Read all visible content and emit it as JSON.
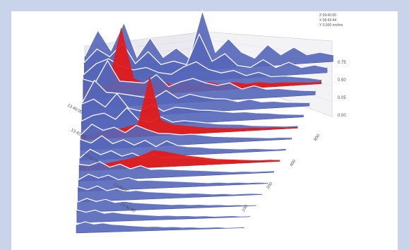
{
  "chart_data": {
    "type": "area",
    "title": "",
    "legend": {
      "position": "top-right",
      "entries": [
        "Z  09:42:00",
        "X  09:42:44",
        "Y  0.000 nm/ms"
      ]
    },
    "z_axis": {
      "label": "",
      "ticks": [
        "0.00",
        "0.05",
        "0.50",
        "0.75"
      ],
      "range": [
        0,
        0.75
      ]
    },
    "time_axis": {
      "ticks": [
        "13:40:00",
        "13:42:00",
        "13:43:00",
        "13:45:00",
        "13:46:00"
      ],
      "highlight": "13:46:00"
    },
    "depth_axis": {
      "ticks": [
        "800",
        "400",
        "200",
        "100"
      ]
    },
    "series": [
      {
        "values": [
          0.25,
          0.55,
          0.3,
          0.62,
          0.2,
          0.42,
          0.18,
          0.28,
          0.15,
          0.7,
          0.2,
          0.35,
          0.18,
          0.1,
          0.25,
          0.12,
          0.2,
          0.1,
          0.12,
          0.08
        ]
      },
      {
        "values": [
          0.3,
          0.45,
          0.35,
          0.5,
          0.25,
          0.38,
          0.22,
          0.25,
          0.2,
          0.55,
          0.22,
          0.3,
          0.15,
          0.12,
          0.2,
          0.1,
          0.15,
          0.08,
          0.1,
          0.06
        ]
      },
      {
        "values": [
          0.28,
          0.4,
          0.45,
          0.35,
          0.3,
          0.32,
          0.25,
          0.22,
          0.3,
          0.35,
          0.25,
          0.2,
          0.22,
          0.15,
          0.18,
          0.12,
          0.12,
          0.1,
          0.08,
          0.05
        ]
      },
      {
        "values": [
          0.35,
          0.3,
          0.55,
          0.3,
          0.28,
          0.26,
          0.35,
          0.2,
          0.25,
          0.28,
          0.22,
          0.18,
          0.2,
          0.12,
          0.15,
          0.1,
          0.1,
          0.08,
          0.06,
          0.05
        ]
      },
      {
        "values": [
          0.2,
          0.45,
          0.3,
          0.28,
          0.25,
          0.22,
          0.2,
          0.28,
          0.18,
          0.22,
          0.18,
          0.15,
          0.14,
          0.1,
          0.12,
          0.08,
          0.08,
          0.06,
          0.05,
          0.04
        ]
      },
      {
        "values": [
          0.3,
          0.35,
          0.25,
          0.4,
          0.22,
          0.18,
          0.25,
          0.16,
          0.2,
          0.18,
          0.15,
          0.14,
          0.12,
          0.1,
          0.1,
          0.08,
          0.07,
          0.05,
          0.04,
          0.03
        ]
      },
      {
        "values": [
          0.22,
          0.28,
          0.3,
          0.22,
          0.35,
          0.2,
          0.16,
          0.22,
          0.15,
          0.16,
          0.14,
          0.12,
          0.1,
          0.09,
          0.08,
          0.06,
          0.05,
          0.04,
          0.03,
          0.03
        ]
      },
      {
        "values": [
          0.18,
          0.3,
          0.22,
          0.25,
          0.18,
          0.26,
          0.2,
          0.15,
          0.14,
          0.12,
          0.12,
          0.1,
          0.08,
          0.07,
          0.06,
          0.05,
          0.04,
          0.03,
          0.03,
          0.02
        ]
      },
      {
        "values": [
          0.25,
          0.2,
          0.28,
          0.18,
          0.22,
          0.15,
          0.2,
          0.12,
          0.18,
          0.12,
          0.1,
          0.09,
          0.07,
          0.06,
          0.05,
          0.04,
          0.04,
          0.03,
          0.02,
          0.02
        ]
      },
      {
        "values": [
          0.15,
          0.25,
          0.18,
          0.22,
          0.15,
          0.18,
          0.12,
          0.15,
          0.1,
          0.1,
          0.09,
          0.08,
          0.06,
          0.05,
          0.05,
          0.04,
          0.03,
          0.03,
          0.02,
          0.02
        ]
      },
      {
        "values": [
          0.2,
          0.18,
          0.22,
          0.15,
          0.18,
          0.12,
          0.15,
          0.1,
          0.1,
          0.09,
          0.08,
          0.07,
          0.06,
          0.05,
          0.04,
          0.03,
          0.03,
          0.02,
          0.02,
          0.02
        ]
      },
      {
        "values": [
          0.14,
          0.2,
          0.15,
          0.18,
          0.12,
          0.14,
          0.1,
          0.1,
          0.09,
          0.08,
          0.07,
          0.06,
          0.05,
          0.04,
          0.04,
          0.03,
          0.03,
          0.02,
          0.02,
          0.01
        ]
      },
      {
        "values": [
          0.18,
          0.14,
          0.18,
          0.12,
          0.14,
          0.1,
          0.11,
          0.09,
          0.08,
          0.07,
          0.06,
          0.05,
          0.05,
          0.04,
          0.03,
          0.03,
          0.02,
          0.02,
          0.02,
          0.01
        ]
      },
      {
        "values": [
          0.12,
          0.16,
          0.12,
          0.14,
          0.1,
          0.11,
          0.09,
          0.08,
          0.07,
          0.06,
          0.05,
          0.05,
          0.04,
          0.04,
          0.03,
          0.03,
          0.02,
          0.02,
          0.01,
          0.01
        ]
      },
      {
        "values": [
          0.15,
          0.12,
          0.14,
          0.1,
          0.11,
          0.09,
          0.08,
          0.07,
          0.06,
          0.05,
          0.05,
          0.04,
          0.04,
          0.03,
          0.03,
          0.02,
          0.02,
          0.02,
          0.01,
          0.01
        ]
      },
      {
        "values": [
          0.1,
          0.13,
          0.1,
          0.11,
          0.09,
          0.08,
          0.07,
          0.06,
          0.05,
          0.05,
          0.04,
          0.04,
          0.03,
          0.03,
          0.02,
          0.02,
          0.02,
          0.01,
          0.01,
          0.01
        ]
      }
    ],
    "highlight_series": [
      {
        "row": 2,
        "values": [
          0.1,
          0.12,
          0.15,
          0.8,
          0.2,
          0.12,
          0.15,
          0.1,
          0.12,
          0.08,
          0.1,
          0.06,
          0.08,
          0.05,
          0.06,
          0.04,
          0.04,
          0.03,
          0.02,
          0.02
        ]
      },
      {
        "row": 6,
        "values": [
          0.05,
          0.06,
          0.08,
          0.1,
          0.12,
          0.15,
          0.7,
          0.18,
          0.12,
          0.1,
          0.08,
          0.06,
          0.05,
          0.04,
          0.03,
          0.03,
          0.02,
          0.02,
          0.01,
          0.01
        ]
      },
      {
        "row": 9,
        "values": [
          0.04,
          0.05,
          0.06,
          0.08,
          0.1,
          0.12,
          0.15,
          0.2,
          0.18,
          0.15,
          0.12,
          0.1,
          0.08,
          0.06,
          0.05,
          0.04,
          0.03,
          0.02,
          0.02,
          0.01
        ]
      }
    ],
    "colors": {
      "surface": "#5566b8",
      "ridge": "#3a4aa0",
      "highlight": "#e21b1b",
      "frame": "#c9d3ea",
      "wall": "#e9e9ef",
      "tick_text": "#50505a",
      "highlight_text": "#d02020"
    }
  }
}
